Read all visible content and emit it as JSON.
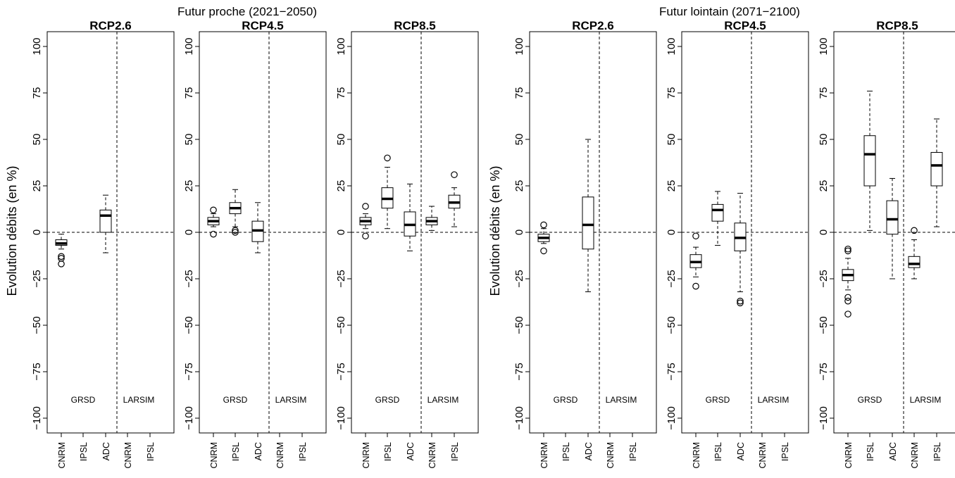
{
  "group_titles": [
    "Futur proche (2021−2050)",
    "Futur lointain (2071−2100)"
  ],
  "ylabel": "Evolution débits (en %)",
  "chart_data": {
    "type": "boxplot",
    "ylim": [
      -105,
      105
    ],
    "yticks": [
      -100,
      -75,
      -50,
      -25,
      0,
      25,
      50,
      75,
      100
    ],
    "ytick_labels": [
      "−100",
      "−75",
      "−50",
      "−25",
      "0",
      "25",
      "50",
      "75",
      "100"
    ],
    "categories": [
      "CNRM",
      "IPSL",
      "ADC",
      "CNRM",
      "IPSL"
    ],
    "model_groups": [
      {
        "label": "GRSD",
        "categories": [
          "CNRM",
          "IPSL",
          "ADC"
        ]
      },
      {
        "label": "LARSIM",
        "categories": [
          "CNRM",
          "IPSL"
        ]
      }
    ],
    "reference_line": 0,
    "panels": [
      {
        "period": "Futur proche (2021−2050)",
        "title": "RCP2.6",
        "boxes": [
          {
            "model": "GRSD",
            "category": "CNRM",
            "whisker_low": -9,
            "q1": -7,
            "median": -6,
            "q3": -4,
            "whisker_high": -1,
            "outliers": [
              -13,
              -14,
              -17
            ]
          },
          null,
          {
            "model": "GRSD",
            "category": "ADC",
            "whisker_low": -11,
            "q1": 0,
            "median": 9,
            "q3": 12,
            "whisker_high": 20,
            "outliers": []
          },
          null,
          null
        ]
      },
      {
        "period": "Futur proche (2021−2050)",
        "title": "RCP4.5",
        "boxes": [
          {
            "model": "GRSD",
            "category": "CNRM",
            "whisker_low": 3,
            "q1": 4,
            "median": 6,
            "q3": 8,
            "whisker_high": 10,
            "outliers": [
              12,
              -1
            ]
          },
          {
            "model": "GRSD",
            "category": "IPSL",
            "whisker_low": 3,
            "q1": 10,
            "median": 13,
            "q3": 16,
            "whisker_high": 23,
            "outliers": [
              1,
              0
            ]
          },
          {
            "model": "GRSD",
            "category": "ADC",
            "whisker_low": -11,
            "q1": -5,
            "median": 1,
            "q3": 6,
            "whisker_high": 16,
            "outliers": []
          },
          null,
          null
        ]
      },
      {
        "period": "Futur proche (2021−2050)",
        "title": "RCP8.5",
        "boxes": [
          {
            "model": "GRSD",
            "category": "CNRM",
            "whisker_low": 2,
            "q1": 4,
            "median": 6,
            "q3": 8,
            "whisker_high": 10,
            "outliers": [
              14,
              -2
            ]
          },
          {
            "model": "GRSD",
            "category": "IPSL",
            "whisker_low": 2,
            "q1": 13,
            "median": 18,
            "q3": 24,
            "whisker_high": 35,
            "outliers": [
              40
            ]
          },
          {
            "model": "GRSD",
            "category": "ADC",
            "whisker_low": -10,
            "q1": -2,
            "median": 4,
            "q3": 11,
            "whisker_high": 26,
            "outliers": []
          },
          {
            "model": "LARSIM",
            "category": "CNRM",
            "whisker_low": 1,
            "q1": 4,
            "median": 6,
            "q3": 8,
            "whisker_high": 14,
            "outliers": []
          },
          {
            "model": "LARSIM",
            "category": "IPSL",
            "whisker_low": 3,
            "q1": 13,
            "median": 16,
            "q3": 20,
            "whisker_high": 24,
            "outliers": [
              31
            ]
          }
        ]
      },
      {
        "period": "Futur lointain (2071−2100)",
        "title": "RCP2.6",
        "boxes": [
          {
            "model": "GRSD",
            "category": "CNRM",
            "whisker_low": -6,
            "q1": -5,
            "median": -3,
            "q3": -1,
            "whisker_high": 2,
            "outliers": [
              4,
              -10
            ]
          },
          null,
          {
            "model": "GRSD",
            "category": "ADC",
            "whisker_low": -32,
            "q1": -9,
            "median": 4,
            "q3": 19,
            "whisker_high": 50,
            "outliers": []
          },
          null,
          null
        ]
      },
      {
        "period": "Futur lointain (2071−2100)",
        "title": "RCP4.5",
        "boxes": [
          {
            "model": "GRSD",
            "category": "CNRM",
            "whisker_low": -24,
            "q1": -19,
            "median": -16,
            "q3": -12,
            "whisker_high": -8,
            "outliers": [
              -2,
              -29
            ]
          },
          {
            "model": "GRSD",
            "category": "IPSL",
            "whisker_low": -7,
            "q1": 6,
            "median": 12,
            "q3": 15,
            "whisker_high": 22,
            "outliers": []
          },
          {
            "model": "GRSD",
            "category": "ADC",
            "whisker_low": -32,
            "q1": -10,
            "median": -3,
            "q3": 5,
            "whisker_high": 21,
            "outliers": [
              -37,
              -38
            ]
          },
          null,
          null
        ]
      },
      {
        "period": "Futur lointain (2071−2100)",
        "title": "RCP8.5",
        "boxes": [
          {
            "model": "GRSD",
            "category": "CNRM",
            "whisker_low": -31,
            "q1": -26,
            "median": -23,
            "q3": -20,
            "whisker_high": -14,
            "outliers": [
              -9,
              -10,
              -35,
              -37,
              -44
            ]
          },
          {
            "model": "GRSD",
            "category": "IPSL",
            "whisker_low": 1,
            "q1": 25,
            "median": 42,
            "q3": 52,
            "whisker_high": 76,
            "outliers": []
          },
          {
            "model": "GRSD",
            "category": "ADC",
            "whisker_low": -25,
            "q1": -1,
            "median": 7,
            "q3": 17,
            "whisker_high": 29,
            "outliers": []
          },
          {
            "model": "LARSIM",
            "category": "CNRM",
            "whisker_low": -25,
            "q1": -19,
            "median": -17,
            "q3": -13,
            "whisker_high": -4,
            "outliers": [
              1
            ]
          },
          {
            "model": "LARSIM",
            "category": "IPSL",
            "whisker_low": 3,
            "q1": 25,
            "median": 36,
            "q3": 43,
            "whisker_high": 61,
            "outliers": []
          }
        ]
      }
    ]
  }
}
